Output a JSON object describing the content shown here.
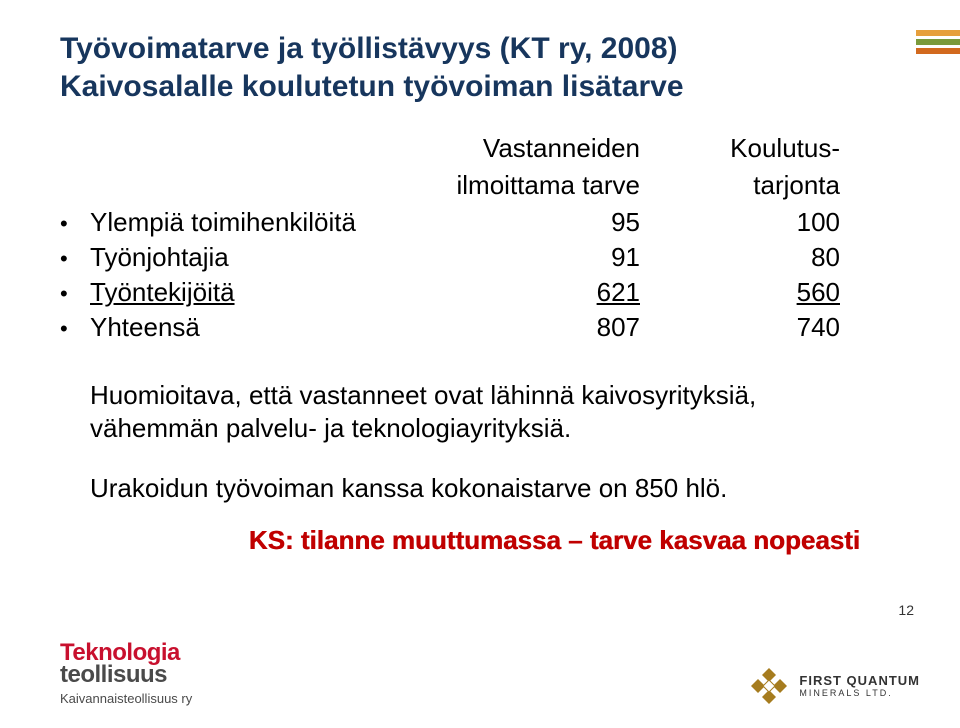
{
  "title": {
    "line1": "Työvoimatarve ja työllistävyys (KT ry, 2008)",
    "line2": "Kaivosalalle koulutetun työvoiman lisätarve",
    "color": "#17365d",
    "fontsize": 30
  },
  "table": {
    "header": {
      "col1_line1": "Vastanneiden",
      "col1_line2": "ilmoittama tarve",
      "col2_line1": "Koulutus-",
      "col2_line2": "tarjonta"
    },
    "rows": [
      {
        "label": "Ylempiä toimihenkilöitä",
        "v1": "95",
        "v2": "100",
        "underline": false
      },
      {
        "label": "Työnjohtajia",
        "v1": "91",
        "v2": "80",
        "underline": false
      },
      {
        "label": "Työntekijöitä",
        "v1": "621",
        "v2": "560",
        "underline": true
      },
      {
        "label": "Yhteensä",
        "v1": "807",
        "v2": "740",
        "underline": false
      }
    ],
    "bullet_char": "•",
    "fontsize": 26
  },
  "note1": {
    "line1": "Huomioitava, että vastanneet ovat lähinnä kaivosyrityksiä,",
    "line2": "vähemmän palvelu- ja teknologiayrityksiä."
  },
  "note2": "Urakoidun työvoiman kanssa kokonaistarve on 850 hlö.",
  "ks_line": "KS: tilanne muuttumassa – tarve kasvaa nopeasti",
  "ks_color": "#c00000",
  "page_number": "12",
  "decor_colors": [
    "#e69f3c",
    "#7a9a3b",
    "#d2691e"
  ],
  "logo_left": {
    "word1": "Teknologia",
    "word2": "teollisuus",
    "subtitle": "Kaivannaisteollisuus ry",
    "word1_color": "#c8102e",
    "word2_color": "#4a4a4a"
  },
  "logo_right": {
    "top": "FIRST QUANTUM",
    "bottom": "MINERALS LTD.",
    "icon_color": "#a67c1f"
  }
}
